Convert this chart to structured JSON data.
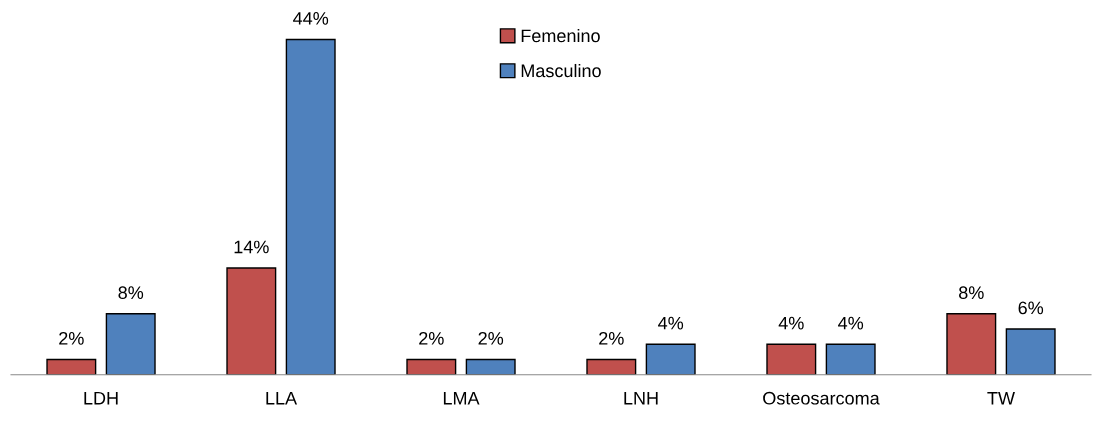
{
  "chart_data": {
    "type": "bar",
    "categories": [
      "LDH",
      "LLA",
      "LMA",
      "LNH",
      "Osteosarcoma",
      "TW"
    ],
    "series": [
      {
        "name": "Femenino",
        "color": "#c0504d",
        "values": [
          2,
          14,
          2,
          2,
          4,
          8
        ],
        "value_labels": [
          "2%",
          "14%",
          "2%",
          "2%",
          "4%",
          "8%"
        ]
      },
      {
        "name": "Masculino",
        "color": "#4f81bd",
        "values": [
          8,
          44,
          2,
          4,
          4,
          6
        ],
        "value_labels": [
          "8%",
          "44%",
          "2%",
          "4%",
          "4%",
          "6%"
        ]
      }
    ],
    "legend": "top",
    "tick_labels": "x",
    "grid": false
  }
}
